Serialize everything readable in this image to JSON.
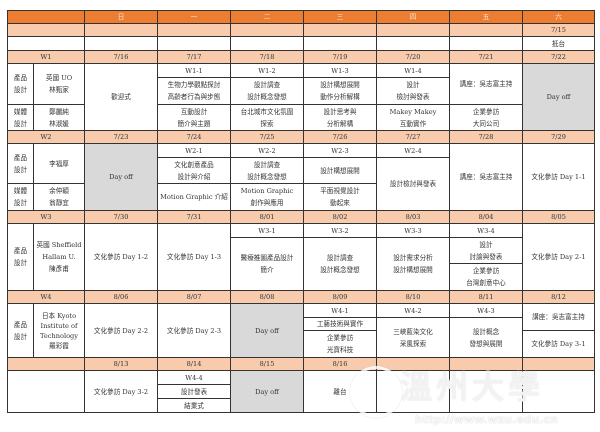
{
  "days": [
    "日",
    "一",
    "二",
    "三",
    "四",
    "五",
    "六"
  ],
  "pre": {
    "sat_date": "7/15",
    "sat_event": "抵台"
  },
  "w1": {
    "label": "W1",
    "dates": [
      "7/16",
      "7/17",
      "7/18",
      "7/19",
      "7/20",
      "7/21",
      "7/22"
    ],
    "group1": "產品\n設計",
    "group1_names": "英國 UO\n林甄家",
    "group2": "媒體\n設計",
    "group2_names": "鄭麗純\n林淑媛",
    "sun": "歡迎式",
    "mon": [
      "W1-1",
      "生物力學觀點探討\n高齡者行為與步態",
      "互動設計\n簡介與主題"
    ],
    "tue": [
      "W1-2",
      "設計調查\n設計概念發想",
      "台北城市文化氛圍\n探索"
    ],
    "wed": [
      "W1-3",
      "設計構想展開\n動作分析解構",
      "設計思考與\n分析解構"
    ],
    "thu": [
      "W1-4",
      "設計\n檢討與發表",
      "Makey Makey\n互動實作"
    ],
    "fri": [
      "講座：吳志富主持",
      "企業參訪\n大同公司"
    ],
    "sat": "Day off"
  },
  "w2": {
    "label": "W2",
    "dates": [
      "7/23",
      "7/24",
      "7/25",
      "7/26",
      "7/27",
      "7/28",
      "7/29"
    ],
    "group1": "產品\n設計",
    "group1_names": "李福厚",
    "group2": "媒體\n設計",
    "group2_names": "余仲穎\n翁靜宜",
    "sun": "Day off",
    "mon": [
      "W2-1",
      "文化創意產品\n設計與介紹",
      "Motion Graphic 介紹"
    ],
    "tue": [
      "W2-2",
      "設計調查\n設計概念發想",
      "Motion Graphic\n創作與應用"
    ],
    "wed": [
      "W2-3",
      "設計構想展開",
      "平面視覺設計\n動起來"
    ],
    "thu": [
      "W2-4",
      "設計檢討與發表"
    ],
    "fri": "講座：吳志富主持",
    "sat": "文化參訪 Day 1-1"
  },
  "w3": {
    "label": "W3",
    "dates": [
      "7/30",
      "7/31",
      "8/01",
      "8/02",
      "8/03",
      "8/04",
      "8/05"
    ],
    "group1": "產品\n設計",
    "group1_names": "英國 Sheffield\nHallam U.\n陳彥甫",
    "sun": "文化參訪 Day 1-2",
    "mon": "文化參訪 Day 1-3",
    "tue": [
      "W3-1",
      "醫療推圖產品設計\n簡介"
    ],
    "wed": [
      "W3-2",
      "設計調查\n設計概念發想"
    ],
    "thu": [
      "W3-3",
      "設計需求分析\n設計構想展開"
    ],
    "fri": [
      "W3-4",
      "設計\n討論與發表",
      "企業參訪\n台灣創意中心"
    ],
    "sat": "文化參訪 Day 2-1"
  },
  "w4": {
    "label": "W4",
    "dates": [
      "8/06",
      "8/07",
      "8/08",
      "8/09",
      "8/10",
      "8/11",
      "8/12"
    ],
    "group1": "產品\n設計",
    "group1_names": "日本 Kyoto\nInstitute of\nTechnology\n羅彩霞",
    "sun": "文化參訪 Day 2-2",
    "mon": "文化參訪 Day 2-3",
    "tue": "Day off",
    "wed": [
      "W4-1",
      "工藝技術與實作",
      "企業參訪\n光寶科技"
    ],
    "thu": [
      "W4-2",
      "三峽藍染文化\n采風探索"
    ],
    "fri": [
      "W4-3",
      "設計概念\n發想與展開"
    ],
    "sat": [
      "講座：吳志富主持",
      "文化參訪 Day 3-1"
    ]
  },
  "w5": {
    "dates": [
      "8/13",
      "8/14",
      "8/15",
      "8/16"
    ],
    "sun": "文化參訪 Day 3-2",
    "mon": [
      "W4-4",
      "設計發表",
      "結業式"
    ],
    "tue": "Day off",
    "wed": "離台"
  },
  "watermark": {
    "name": "溫州大學",
    "url": "http://www.wzu.edu.cn"
  },
  "colors": {
    "header": "#ed7d31",
    "date_row": "#f8cbad",
    "day_off": "#d9d9d9"
  }
}
